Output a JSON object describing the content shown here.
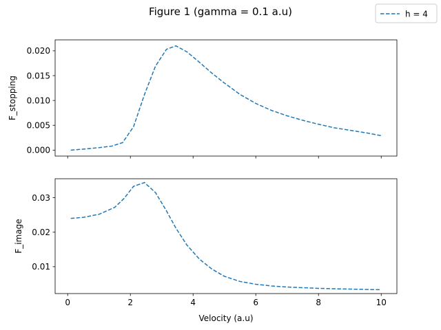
{
  "figure": {
    "title": "Figure 1 (gamma = 0.1 a.u)"
  },
  "legend": {
    "label": "h = 4",
    "placement": "top-right"
  },
  "colors": {
    "series": "#1f77b4",
    "axes": "#000000",
    "background": "#ffffff"
  },
  "chart_data": [
    {
      "type": "line",
      "title": "",
      "xlabel": "",
      "ylabel": "F_stopping",
      "xlim": [
        -0.4,
        10.5
      ],
      "ylim": [
        -0.0012,
        0.0222
      ],
      "xticks": [
        0,
        2,
        4,
        6,
        8,
        10
      ],
      "xtick_labels_visible": false,
      "yticks": [
        0.0,
        0.005,
        0.01,
        0.015,
        0.02
      ],
      "ytick_labels": [
        "0.000",
        "0.005",
        "0.010",
        "0.015",
        "0.020"
      ],
      "grid": false,
      "series": [
        {
          "name": "h = 4",
          "style": "dashed",
          "x": [
            0.1,
            0.5,
            1.0,
            1.4,
            1.75,
            2.1,
            2.45,
            2.8,
            3.15,
            3.45,
            3.8,
            4.2,
            4.6,
            5.0,
            5.5,
            6.0,
            6.5,
            7.0,
            7.5,
            8.0,
            8.5,
            9.0,
            9.5,
            10.0
          ],
          "y": [
            0.0,
            0.0002,
            0.0005,
            0.0008,
            0.0015,
            0.0047,
            0.0112,
            0.0169,
            0.0203,
            0.021,
            0.0198,
            0.0177,
            0.0155,
            0.0135,
            0.0112,
            0.0094,
            0.008,
            0.0069,
            0.006,
            0.0052,
            0.0045,
            0.004,
            0.0035,
            0.0029
          ]
        }
      ]
    },
    {
      "type": "line",
      "title": "",
      "xlabel": "Velocity (a.u)",
      "ylabel": "F_image",
      "xlim": [
        -0.4,
        10.5
      ],
      "ylim": [
        0.0022,
        0.0355
      ],
      "xticks": [
        0,
        2,
        4,
        6,
        8,
        10
      ],
      "xtick_labels": [
        "0",
        "2",
        "4",
        "6",
        "8",
        "10"
      ],
      "yticks": [
        0.01,
        0.02,
        0.03
      ],
      "ytick_labels": [
        "0.01",
        "0.02",
        "0.03"
      ],
      "grid": false,
      "series": [
        {
          "name": "h = 4",
          "style": "dashed",
          "x": [
            0.1,
            0.5,
            1.0,
            1.5,
            1.8,
            2.1,
            2.45,
            2.8,
            3.15,
            3.45,
            3.8,
            4.2,
            4.6,
            5.0,
            5.5,
            6.0,
            6.5,
            7.0,
            7.5,
            8.0,
            8.5,
            9.0,
            9.5,
            10.0
          ],
          "y": [
            0.024,
            0.0243,
            0.0252,
            0.0272,
            0.0298,
            0.0333,
            0.0344,
            0.0315,
            0.0262,
            0.0212,
            0.0163,
            0.0122,
            0.0093,
            0.0072,
            0.0057,
            0.0049,
            0.0044,
            0.0041,
            0.0039,
            0.0037,
            0.0036,
            0.0035,
            0.0034,
            0.0033
          ]
        }
      ]
    }
  ]
}
